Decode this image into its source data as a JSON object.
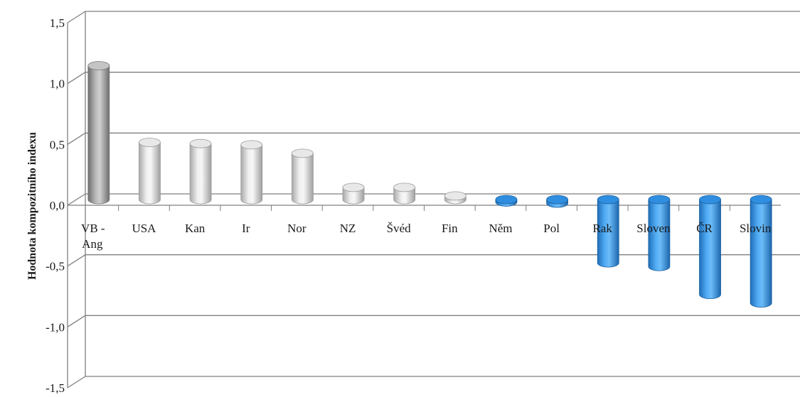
{
  "chart_data": {
    "type": "bar",
    "style": "3d-cylinder",
    "ylabel": "Hodnota kompozitního indexu",
    "ylim": [
      -1.5,
      1.5
    ],
    "yticks": [
      "1,5",
      "1,0",
      "0,5",
      "0,0",
      "-0,5",
      "-1,0",
      "-1,5"
    ],
    "ytick_values": [
      1.5,
      1.0,
      0.5,
      0.0,
      -0.5,
      -1.0,
      -1.5
    ],
    "categories": [
      "VB - Ang",
      "USA",
      "Kan",
      "Ir",
      "Nor",
      "NZ",
      "Švéd",
      "Fin",
      "Něm",
      "Pol",
      "Rak",
      "Sloven",
      "ČR",
      "Slovin"
    ],
    "values": [
      1.1,
      0.47,
      0.46,
      0.45,
      0.38,
      0.1,
      0.1,
      0.03,
      -0.02,
      -0.03,
      -0.52,
      -0.55,
      -0.78,
      -0.85
    ],
    "grid": true,
    "colors": {
      "highlight": "#9a9a9a",
      "positive": "#d9d9d9",
      "negative": "#3a9ae8",
      "grid": "#7f7f7f"
    }
  }
}
